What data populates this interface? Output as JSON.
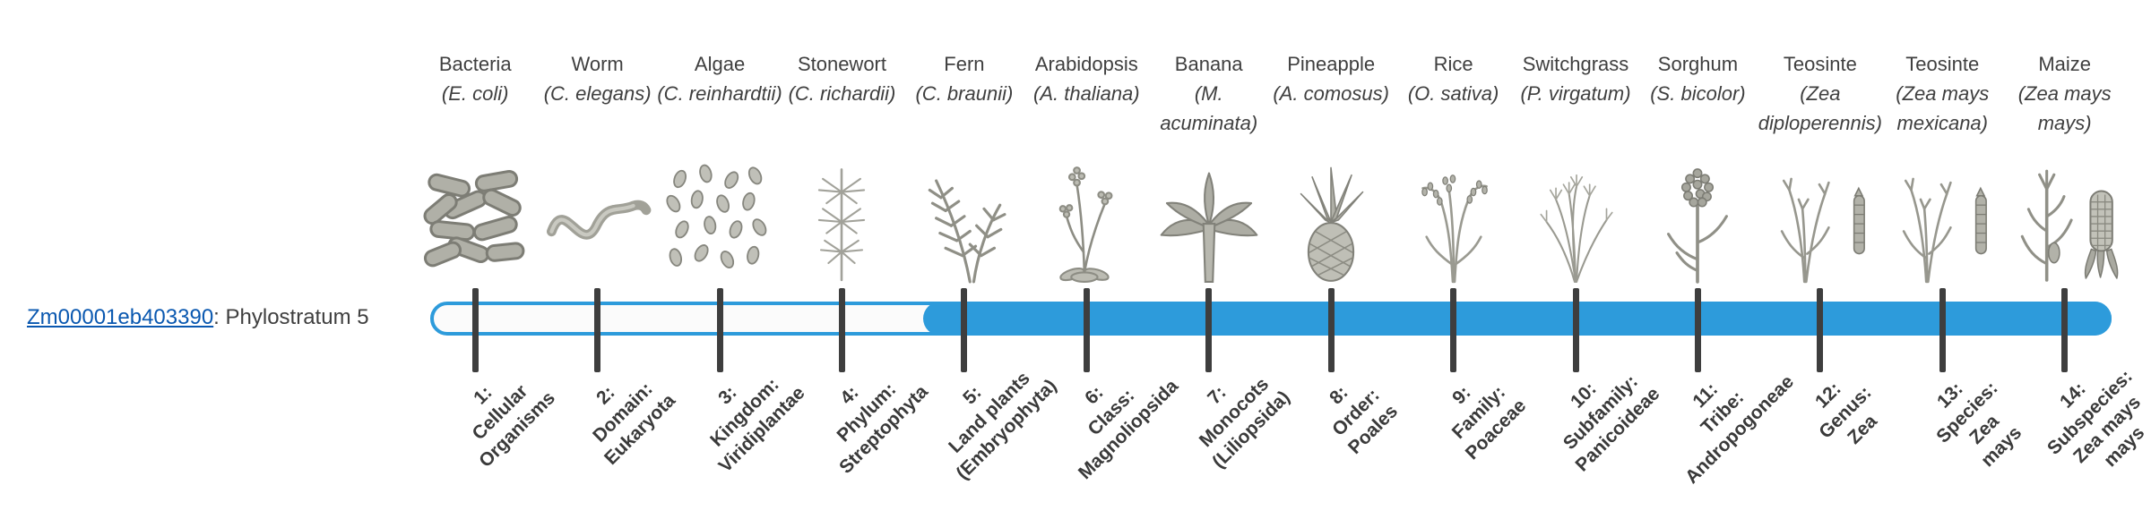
{
  "gene": {
    "id": "Zm00001eb403390",
    "suffix": ": Phylostratum 5"
  },
  "timeline": {
    "bar_color": "#2d9bdb",
    "tick_color": "#3e3e3e",
    "filled_from_stratum": 5,
    "strata": [
      {
        "number": 1,
        "organism": "Bacteria",
        "scientific": "(E. coli)",
        "icon": "bacteria",
        "label": "1:\nCellular\nOrganisms"
      },
      {
        "number": 2,
        "organism": "Worm",
        "scientific": "(C. elegans)",
        "icon": "worm",
        "label": "2:\nDomain:\nEukaryota"
      },
      {
        "number": 3,
        "organism": "Algae",
        "scientific": "(C. reinhardtii)",
        "icon": "algae",
        "label": "3:\nKingdom:\nViridiplantae"
      },
      {
        "number": 4,
        "organism": "Stonewort",
        "scientific": "(C. richardii)",
        "icon": "stonewort",
        "label": "4:\nPhylum:\nStreptophyta"
      },
      {
        "number": 5,
        "organism": "Fern",
        "scientific": "(C. braunii)",
        "icon": "fern",
        "label": "5:\nLand plants\n(Embryophyta)"
      },
      {
        "number": 6,
        "organism": "Arabidopsis",
        "scientific": "(A. thaliana)",
        "icon": "arabidopsis",
        "label": "6:\nClass:\nMagnoliopsida"
      },
      {
        "number": 7,
        "organism": "Banana",
        "scientific": "(M. acuminata)",
        "icon": "banana",
        "label": "7:\nMonocots\n(Liliopsida)"
      },
      {
        "number": 8,
        "organism": "Pineapple",
        "scientific": "(A. comosus)",
        "icon": "pineapple",
        "label": "8:\nOrder:\nPoales"
      },
      {
        "number": 9,
        "organism": "Rice",
        "scientific": "(O. sativa)",
        "icon": "rice",
        "label": "9:\nFamily:\nPoaceae"
      },
      {
        "number": 10,
        "organism": "Switchgrass",
        "scientific": "(P. virgatum)",
        "icon": "switchgrass",
        "label": "10:\nSubfamily:\nPanicoideae"
      },
      {
        "number": 11,
        "organism": "Sorghum",
        "scientific": "(S. bicolor)",
        "icon": "sorghum",
        "label": "11:\nTribe:\nAndropogoneae"
      },
      {
        "number": 12,
        "organism": "Teosinte",
        "scientific": "(Zea diploperennis)",
        "icon": "teosinte",
        "label": "12:\nGenus:\nZea"
      },
      {
        "number": 13,
        "organism": "Teosinte",
        "scientific": "(Zea mays mexicana)",
        "icon": "teosinte",
        "label": "13:\nSpecies:\nZea\nmays"
      },
      {
        "number": 14,
        "organism": "Maize",
        "scientific": "(Zea mays mays)",
        "icon": "maize",
        "label": "14:\nSubspecies:\nZea mays\nmays"
      }
    ]
  }
}
